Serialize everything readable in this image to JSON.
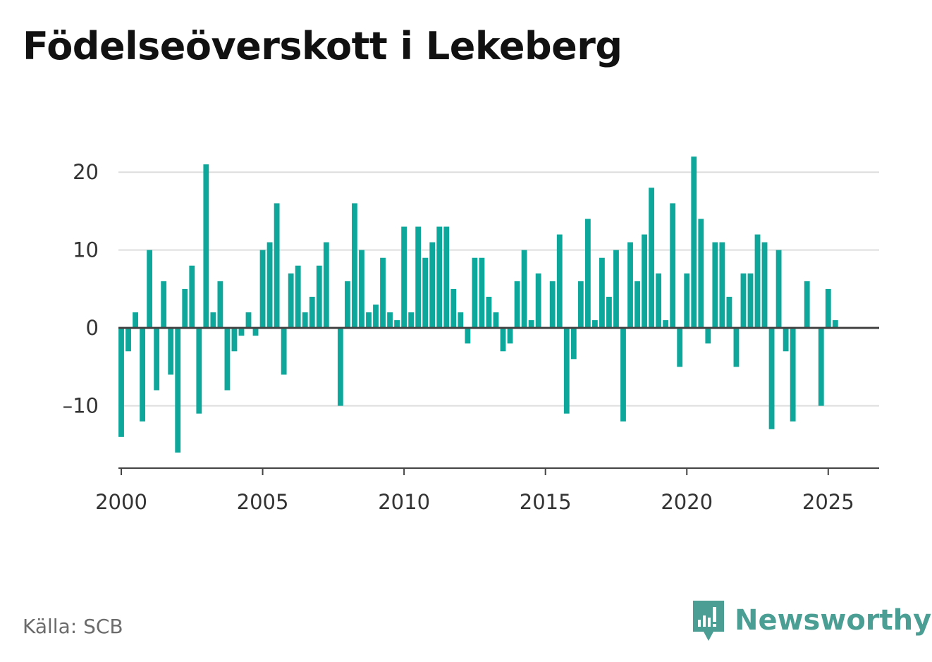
{
  "title": "Födelseöverskott i Lekeberg",
  "source": "Källa: SCB",
  "brand": {
    "name": "Newsworthy",
    "icon": "bar-chart-bubble-icon",
    "color": "#4a9e93"
  },
  "colors": {
    "bar": "#0da89b",
    "grid": "#dddddd",
    "zero_line": "#444444",
    "axis": "#444444"
  },
  "chart_data": {
    "type": "bar",
    "title": "Födelseöverskott i Lekeberg",
    "xlabel": "",
    "ylabel": "",
    "x_ticks": [
      "2000",
      "2005",
      "2010",
      "2015",
      "2020",
      "2025"
    ],
    "y_ticks": [
      20,
      10,
      0,
      -10
    ],
    "y_tick_labels": [
      "20",
      "10",
      "0",
      "–10"
    ],
    "ylim": [
      -18,
      24
    ],
    "xlim": [
      1999.9,
      2026.8
    ],
    "grid": true,
    "legend": "none",
    "series": [
      {
        "quarters_from": "2000-Q1",
        "values": [
          -14,
          -3,
          2,
          -12,
          10,
          -8,
          6,
          -6,
          -16,
          5,
          8,
          -11,
          21,
          2,
          6,
          -8,
          -3,
          -1,
          2,
          -1,
          10,
          11,
          16,
          -6,
          7,
          8,
          2,
          4,
          8,
          11,
          0,
          -10,
          6,
          16,
          10,
          2,
          3,
          9,
          2,
          1,
          13,
          2,
          13,
          9,
          11,
          13,
          13,
          5,
          2,
          -2,
          9,
          9,
          4,
          2,
          -3,
          -2,
          6,
          10,
          1,
          7,
          0,
          6,
          12,
          -11,
          -4,
          6,
          14,
          1,
          9,
          4,
          10,
          -12,
          11,
          6,
          12,
          18,
          7,
          1,
          16,
          -5,
          7,
          22,
          14,
          -2,
          11,
          11,
          4,
          -5,
          7,
          7,
          12,
          11,
          -13,
          10,
          -3,
          -12,
          0,
          6,
          0,
          -10,
          5,
          1
        ]
      }
    ]
  }
}
